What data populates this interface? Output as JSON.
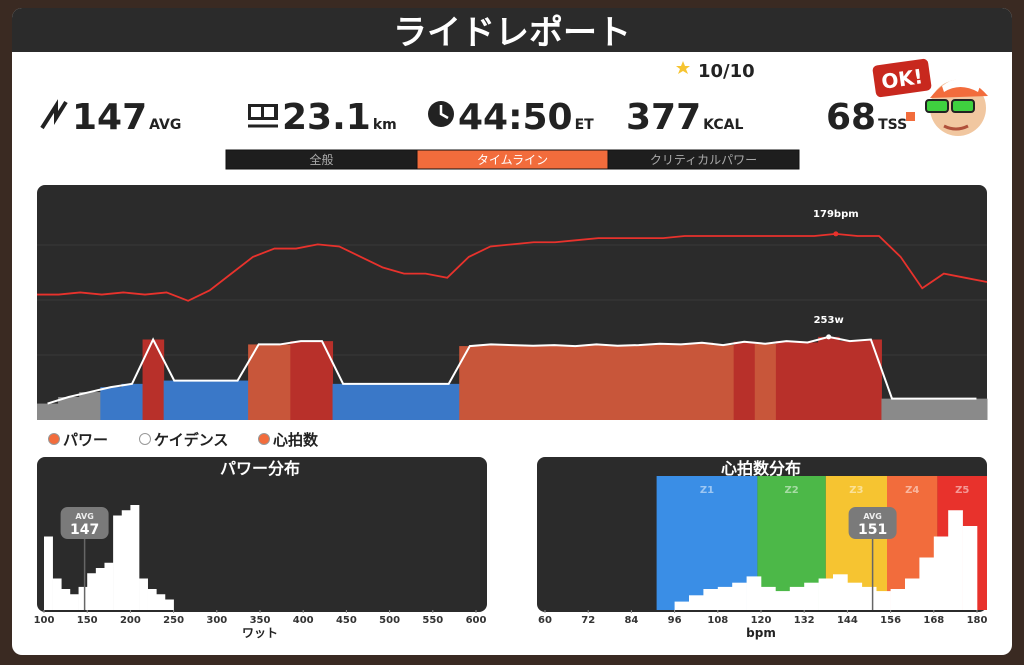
{
  "header": {
    "title": "ライドレポート"
  },
  "stats": {
    "rating": "10/10",
    "items": [
      {
        "value": "147",
        "unit": "AVG"
      },
      {
        "value": "23.1",
        "unit": "km"
      },
      {
        "value": "44:50",
        "unit": "ET"
      },
      {
        "value": "377",
        "unit": "KCAL"
      },
      {
        "value": "68",
        "unit": "TSS"
      }
    ]
  },
  "badge": "OK!",
  "tabs": [
    {
      "label": "全般"
    },
    {
      "label": "タイムライン",
      "active": true
    },
    {
      "label": "クリティカルパワー"
    }
  ],
  "timeline": {
    "type": "line+area",
    "heart_rate": {
      "color": "#e8322c",
      "ylim": [
        90,
        200
      ],
      "values": [
        150,
        150,
        151,
        150,
        151,
        150,
        151,
        147,
        152,
        160,
        168,
        172,
        172,
        174,
        173,
        168,
        163,
        160,
        160,
        158,
        168,
        173,
        174,
        175,
        175,
        176,
        177,
        177,
        177,
        177,
        178,
        178,
        178,
        178,
        178,
        178,
        178,
        179,
        178,
        178,
        168,
        153,
        160,
        158,
        156
      ],
      "peak": {
        "value": 179,
        "label": "179bpm"
      }
    },
    "power": {
      "ylim": [
        0,
        700
      ],
      "values": [
        50,
        70,
        85,
        100,
        110,
        245,
        120,
        120,
        120,
        120,
        230,
        230,
        240,
        240,
        110,
        110,
        110,
        110,
        110,
        110,
        225,
        230,
        228,
        226,
        228,
        225,
        230,
        226,
        228,
        232,
        230,
        235,
        228,
        238,
        232,
        240,
        236,
        253,
        240,
        245,
        65,
        65,
        65,
        65,
        65
      ],
      "peak": {
        "value": 253,
        "label": "253w"
      },
      "zones": [
        {
          "min": 0,
          "color": "#8a8a8a"
        },
        {
          "min": 90,
          "color": "#3a78c8"
        },
        {
          "min": 150,
          "color": "#c8563a"
        },
        {
          "min": 236,
          "color": "#b8302a"
        }
      ]
    }
  },
  "legend": [
    {
      "label": "パワー",
      "color": "#f26c3c"
    },
    {
      "label": "ケイデンス",
      "color": "#ffffff"
    },
    {
      "label": "心拍数",
      "color": "#f26c3c"
    }
  ],
  "power_distribution": {
    "type": "histogram",
    "title": "パワー分布",
    "xlabel": "ワット",
    "xlim": [
      100,
      600
    ],
    "xticks": [
      100,
      150,
      200,
      250,
      300,
      350,
      400,
      450,
      500,
      550,
      600
    ],
    "ylim": [
      0,
      100
    ],
    "bins": [
      100,
      110,
      120,
      130,
      140,
      150,
      160,
      170,
      180,
      190,
      200,
      210,
      220,
      230,
      240,
      250
    ],
    "counts": [
      70,
      30,
      20,
      15,
      22,
      35,
      40,
      45,
      90,
      95,
      100,
      30,
      20,
      15,
      10
    ],
    "avg": {
      "caption": "AVG",
      "value": 147,
      "label": "147"
    }
  },
  "hr_distribution": {
    "type": "histogram",
    "title": "心拍数分布",
    "xlabel": "bpm",
    "xlim": [
      60,
      180
    ],
    "xticks": [
      60,
      72,
      84,
      96,
      108,
      120,
      132,
      144,
      156,
      168,
      180
    ],
    "ylim": [
      0,
      100
    ],
    "zones": [
      {
        "label": "Z1",
        "from": 91,
        "to": 119,
        "color": "#3a8ee6"
      },
      {
        "label": "Z2",
        "from": 119,
        "to": 138,
        "color": "#4cb848"
      },
      {
        "label": "Z3",
        "from": 138,
        "to": 155,
        "color": "#f6c431"
      },
      {
        "label": "Z4",
        "from": 155,
        "to": 169,
        "color": "#f26c3c"
      },
      {
        "label": "Z5",
        "from": 169,
        "to": 183,
        "color": "#e8322c"
      }
    ],
    "bins": [
      96,
      100,
      104,
      108,
      112,
      116,
      120,
      124,
      128,
      132,
      136,
      140,
      144,
      148,
      152,
      156,
      160,
      164,
      168,
      172,
      176,
      180
    ],
    "counts": [
      8,
      14,
      20,
      22,
      26,
      32,
      22,
      18,
      22,
      26,
      30,
      34,
      26,
      22,
      18,
      20,
      30,
      50,
      70,
      95,
      80
    ],
    "avg": {
      "caption": "AVG",
      "value": 151,
      "label": "151"
    }
  }
}
